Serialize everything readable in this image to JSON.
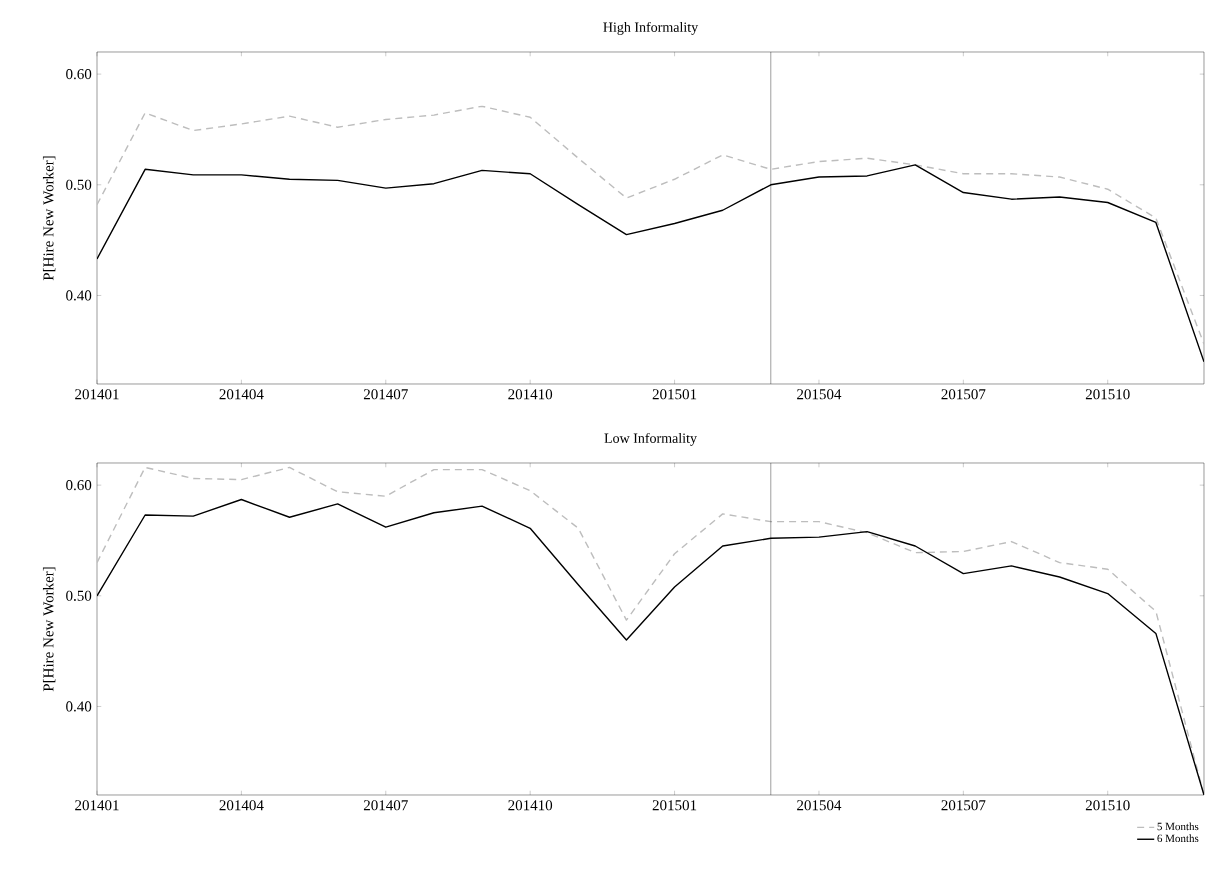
{
  "chart_data": [
    {
      "type": "line",
      "title": "High Informality",
      "ylabel": "P[Hire New Worker]",
      "x": [
        "2014-01",
        "2014-02",
        "2014-03",
        "2014-04",
        "2014-05",
        "2014-06",
        "2014-07",
        "2014-08",
        "2014-09",
        "2014-10",
        "2014-11",
        "2014-12",
        "2015-01",
        "2015-02",
        "2015-03",
        "2015-04",
        "2015-05",
        "2015-06",
        "2015-07",
        "2015-08",
        "2015-09",
        "2015-10",
        "2015-11",
        "2015-12"
      ],
      "xlim": [
        "2014-01",
        "2015-12"
      ],
      "xticks": [
        {
          "value": "2014-01",
          "label": "201401"
        },
        {
          "value": "2014-04",
          "label": "201404"
        },
        {
          "value": "2014-07",
          "label": "201407"
        },
        {
          "value": "2014-10",
          "label": "201410"
        },
        {
          "value": "2015-01",
          "label": "201501"
        },
        {
          "value": "2015-04",
          "label": "201504"
        },
        {
          "value": "2015-07",
          "label": "201507"
        },
        {
          "value": "2015-10",
          "label": "201510"
        }
      ],
      "ylim": [
        0.32,
        0.62
      ],
      "yticks": [
        {
          "value": 0.4,
          "label": "0.40"
        },
        {
          "value": 0.5,
          "label": "0.50"
        },
        {
          "value": 0.6,
          "label": "0.60"
        }
      ],
      "ref_lines": [
        {
          "axis": "x",
          "value": "2015-03",
          "color": "#000000"
        }
      ],
      "series": [
        {
          "color": "#bdbdbd",
          "line_style": "dashed",
          "values": [
            0.482,
            0.565,
            0.549,
            0.555,
            0.562,
            0.552,
            0.559,
            0.563,
            0.571,
            0.561,
            0.524,
            0.488,
            0.505,
            0.527,
            0.514,
            0.521,
            0.524,
            0.518,
            0.51,
            0.51,
            0.507,
            0.496,
            0.47,
            0.356
          ]
        },
        {
          "color": "#000000",
          "line_style": "solid",
          "values": [
            0.433,
            0.514,
            0.509,
            0.509,
            0.505,
            0.504,
            0.497,
            0.501,
            0.513,
            0.51,
            0.482,
            0.455,
            0.465,
            0.477,
            0.5,
            0.507,
            0.508,
            0.518,
            0.493,
            0.487,
            0.489,
            0.484,
            0.466,
            0.34
          ]
        }
      ]
    },
    {
      "type": "line",
      "title": "Low Informality",
      "ylabel": "P[Hire New Worker]",
      "legend": "bottom right",
      "x": [
        "2014-01",
        "2014-02",
        "2014-03",
        "2014-04",
        "2014-05",
        "2014-06",
        "2014-07",
        "2014-08",
        "2014-09",
        "2014-10",
        "2014-11",
        "2014-12",
        "2015-01",
        "2015-02",
        "2015-03",
        "2015-04",
        "2015-05",
        "2015-06",
        "2015-07",
        "2015-08",
        "2015-09",
        "2015-10",
        "2015-11",
        "2015-12"
      ],
      "xlim": [
        "2014-01",
        "2015-12"
      ],
      "xticks": [
        {
          "value": "2014-01",
          "label": "201401"
        },
        {
          "value": "2014-04",
          "label": "201404"
        },
        {
          "value": "2014-07",
          "label": "201407"
        },
        {
          "value": "2014-10",
          "label": "201410"
        },
        {
          "value": "2015-01",
          "label": "201501"
        },
        {
          "value": "2015-04",
          "label": "201504"
        },
        {
          "value": "2015-07",
          "label": "201507"
        },
        {
          "value": "2015-10",
          "label": "201510"
        }
      ],
      "ylim": [
        0.32,
        0.62
      ],
      "yticks": [
        {
          "value": 0.4,
          "label": "0.40"
        },
        {
          "value": 0.5,
          "label": "0.50"
        },
        {
          "value": 0.6,
          "label": "0.60"
        }
      ],
      "ref_lines": [
        {
          "axis": "x",
          "value": "2015-03",
          "color": "#000000"
        }
      ],
      "series": [
        {
          "name": "5 Months",
          "color": "#bdbdbd",
          "line_style": "dashed",
          "values": [
            0.53,
            0.616,
            0.606,
            0.605,
            0.616,
            0.594,
            0.59,
            0.614,
            0.614,
            0.595,
            0.561,
            0.478,
            0.538,
            0.574,
            0.567,
            0.567,
            0.557,
            0.539,
            0.54,
            0.549,
            0.53,
            0.524,
            0.486,
            0.32
          ]
        },
        {
          "name": "6 Months",
          "color": "#000000",
          "line_style": "solid",
          "values": [
            0.5,
            0.573,
            0.572,
            0.587,
            0.571,
            0.583,
            0.562,
            0.575,
            0.581,
            0.561,
            0.51,
            0.46,
            0.508,
            0.545,
            0.552,
            0.553,
            0.558,
            0.545,
            0.52,
            0.527,
            0.517,
            0.502,
            0.466,
            0.32
          ]
        }
      ]
    }
  ]
}
